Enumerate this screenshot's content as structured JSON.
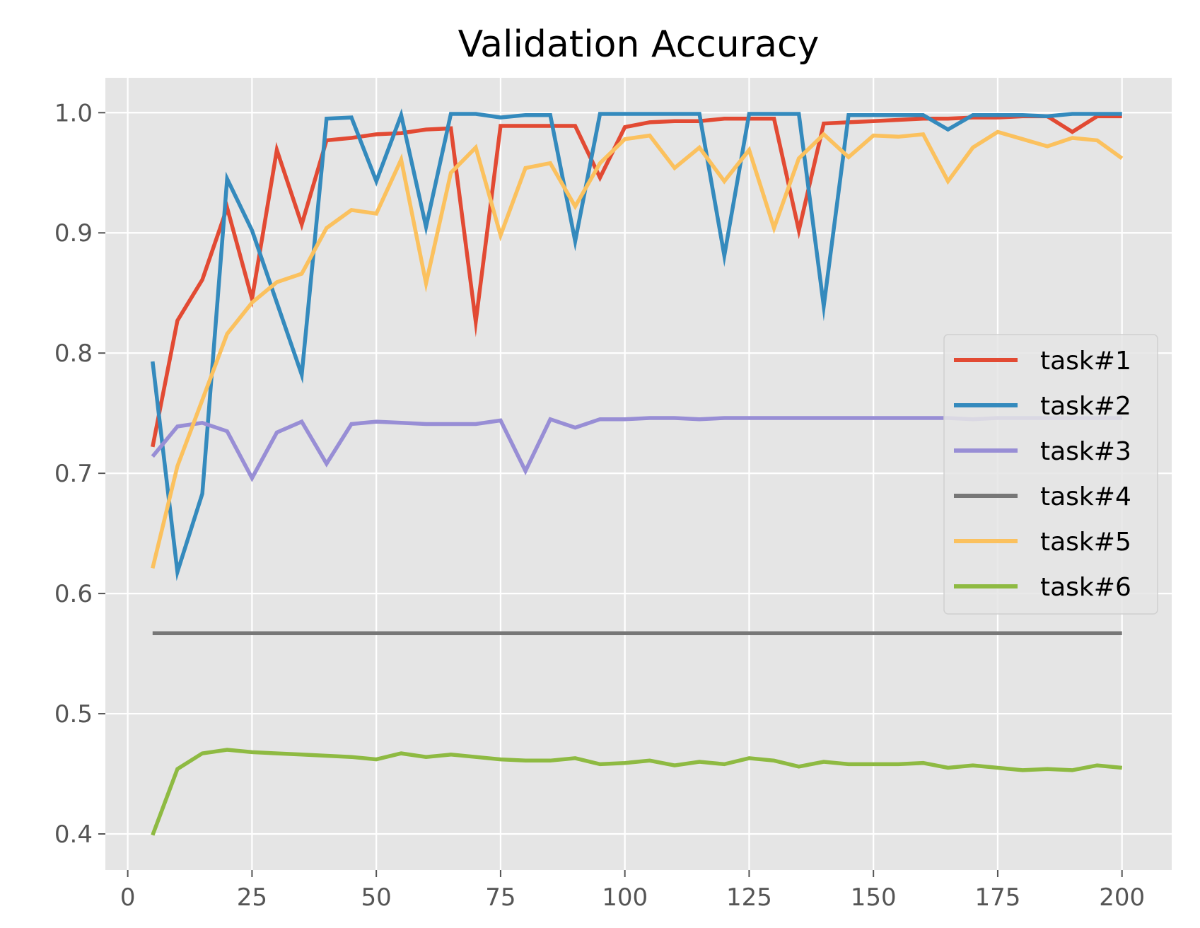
{
  "chart_data": {
    "type": "line",
    "title": "Validation Accuracy",
    "xlabel": "",
    "ylabel": "",
    "xlim": [
      -4.5,
      210
    ],
    "ylim": [
      0.37,
      1.029
    ],
    "x_ticks": [
      0,
      25,
      50,
      75,
      100,
      125,
      150,
      175,
      200
    ],
    "x_tick_labels": [
      "0",
      "25",
      "50",
      "75",
      "100",
      "125",
      "150",
      "175",
      "200"
    ],
    "y_ticks": [
      0.4,
      0.5,
      0.6,
      0.7,
      0.8,
      0.9,
      1.0
    ],
    "y_tick_labels": [
      "0.4",
      "0.5",
      "0.6",
      "0.7",
      "0.8",
      "0.9",
      "1.0"
    ],
    "grid": true,
    "legend_position": "center-right",
    "x": [
      5,
      10,
      15,
      20,
      25,
      30,
      35,
      40,
      45,
      50,
      55,
      60,
      65,
      70,
      75,
      80,
      85,
      90,
      95,
      100,
      105,
      110,
      115,
      120,
      125,
      130,
      135,
      140,
      145,
      150,
      155,
      160,
      165,
      170,
      175,
      180,
      185,
      190,
      195,
      200
    ],
    "series": [
      {
        "name": "task#1",
        "color": "#E24A33",
        "values": [
          0.722,
          0.827,
          0.861,
          0.921,
          0.845,
          0.969,
          0.907,
          0.977,
          0.979,
          0.982,
          0.983,
          0.986,
          0.987,
          0.826,
          0.989,
          0.989,
          0.989,
          0.989,
          0.946,
          0.988,
          0.992,
          0.993,
          0.993,
          0.995,
          0.995,
          0.995,
          0.902,
          0.991,
          0.992,
          0.993,
          0.994,
          0.995,
          0.995,
          0.996,
          0.996,
          0.997,
          0.997,
          0.984,
          0.997,
          0.997
        ]
      },
      {
        "name": "task#2",
        "color": "#348ABD",
        "values": [
          0.793,
          0.618,
          0.683,
          0.945,
          0.902,
          0.842,
          0.782,
          0.995,
          0.996,
          0.943,
          0.998,
          0.905,
          0.999,
          0.999,
          0.996,
          0.998,
          0.998,
          0.893,
          0.999,
          0.999,
          0.999,
          0.999,
          0.999,
          0.881,
          0.999,
          0.999,
          0.999,
          0.839,
          0.998,
          0.998,
          0.998,
          0.998,
          0.986,
          0.998,
          0.998,
          0.998,
          0.997,
          0.999,
          0.999,
          0.999
        ]
      },
      {
        "name": "task#3",
        "color": "#988ED5",
        "values": [
          0.714,
          0.739,
          0.742,
          0.735,
          0.696,
          0.734,
          0.743,
          0.708,
          0.741,
          0.743,
          0.742,
          0.741,
          0.741,
          0.741,
          0.744,
          0.702,
          0.745,
          0.738,
          0.745,
          0.745,
          0.746,
          0.746,
          0.745,
          0.746,
          0.746,
          0.746,
          0.746,
          0.746,
          0.746,
          0.746,
          0.746,
          0.746,
          0.746,
          0.745,
          0.746,
          0.746,
          0.746,
          0.746,
          0.746,
          0.746
        ]
      },
      {
        "name": "task#4",
        "color": "#777777",
        "values": [
          0.567,
          0.567,
          0.567,
          0.567,
          0.567,
          0.567,
          0.567,
          0.567,
          0.567,
          0.567,
          0.567,
          0.567,
          0.567,
          0.567,
          0.567,
          0.567,
          0.567,
          0.567,
          0.567,
          0.567,
          0.567,
          0.567,
          0.567,
          0.567,
          0.567,
          0.567,
          0.567,
          0.567,
          0.567,
          0.567,
          0.567,
          0.567,
          0.567,
          0.567,
          0.567,
          0.567,
          0.567,
          0.567,
          0.567,
          0.567
        ]
      },
      {
        "name": "task#5",
        "color": "#FBC15E",
        "values": [
          0.621,
          0.706,
          0.761,
          0.816,
          0.842,
          0.859,
          0.866,
          0.904,
          0.919,
          0.916,
          0.961,
          0.858,
          0.95,
          0.971,
          0.898,
          0.954,
          0.958,
          0.922,
          0.958,
          0.978,
          0.981,
          0.954,
          0.971,
          0.943,
          0.969,
          0.904,
          0.962,
          0.982,
          0.963,
          0.981,
          0.98,
          0.982,
          0.943,
          0.971,
          0.984,
          0.978,
          0.972,
          0.979,
          0.977,
          0.962
        ]
      },
      {
        "name": "task#6",
        "color": "#8EBA42",
        "values": [
          0.399,
          0.454,
          0.467,
          0.47,
          0.468,
          0.467,
          0.466,
          0.465,
          0.464,
          0.462,
          0.467,
          0.464,
          0.466,
          0.464,
          0.462,
          0.461,
          0.461,
          0.463,
          0.458,
          0.459,
          0.461,
          0.457,
          0.46,
          0.458,
          0.463,
          0.461,
          0.456,
          0.46,
          0.458,
          0.458,
          0.458,
          0.459,
          0.455,
          0.457,
          0.455,
          0.453,
          0.454,
          0.453,
          0.457,
          0.455
        ]
      }
    ]
  }
}
